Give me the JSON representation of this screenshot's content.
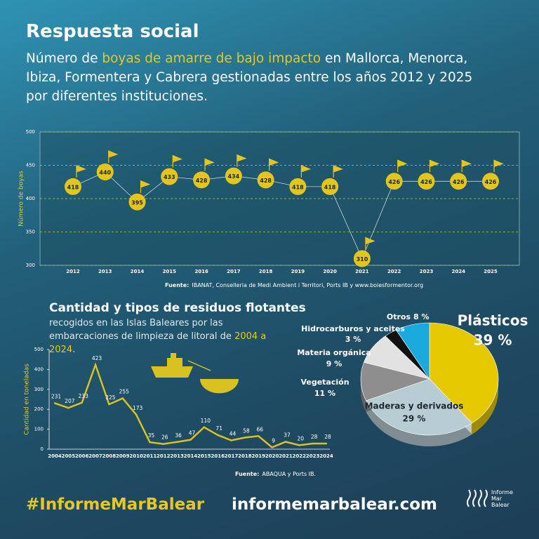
{
  "header": {
    "title": "Respuesta social",
    "subtitle": [
      "Número de ",
      "boyas de amarre de bajo impacto",
      " en Mallorca, Menorca, Ibiza, Formentera y Cabrera gestionadas entre los años 2012 y 2025 por diferentes instituciones."
    ]
  },
  "chart_data": [
    {
      "type": "line",
      "y_label": "Número de boyas",
      "categories": [
        "2012",
        "2013",
        "2014",
        "2015",
        "2016",
        "2017",
        "2018",
        "2019",
        "2020",
        "2021",
        "2022",
        "2023",
        "2024",
        "2025"
      ],
      "values": [
        418,
        440,
        395,
        433,
        428,
        434,
        428,
        418,
        418,
        310,
        426,
        426,
        426,
        426
      ],
      "color": "#e3c51c",
      "ylim": [
        300,
        500
      ],
      "yticks": [
        300,
        350,
        400,
        450,
        500
      ],
      "grid": true,
      "source": {
        "label": "Fuente:",
        "text": "IBANAT, Conselleria de Medi Ambient i Territori, Ports IB y www.boiesformentor.org"
      }
    },
    {
      "type": "line",
      "title": "Cantidad y tipos de residuos flotantes",
      "subtitle": [
        "recogidos en las Islas Baleares por las embarcaciones de limpieza de litoral de ",
        "2004 a 2024",
        "."
      ],
      "y_label": "Cantidad en toneladas",
      "categories": [
        "2004",
        "2005",
        "2006",
        "2007",
        "2008",
        "2009",
        "2010",
        "2011",
        "2012",
        "2013",
        "2014",
        "2015",
        "2016",
        "2017",
        "2018",
        "2019",
        "2020",
        "2021",
        "2022",
        "2023",
        "2024"
      ],
      "values": [
        231,
        207,
        233,
        423,
        225,
        255,
        173,
        35,
        26,
        36,
        47,
        110,
        71,
        44,
        58,
        66,
        9,
        37,
        20,
        28,
        28
      ],
      "color": "#d9c21f",
      "ylim": [
        0,
        500
      ],
      "yticks": [
        0,
        100,
        200,
        300,
        400,
        500
      ],
      "grid": false,
      "source": {
        "label": "Fuente:",
        "text": "ABAQUA y Ports IB."
      }
    },
    {
      "type": "pie",
      "categories": [
        "Plásticos",
        "Maderas y derivados",
        "Vegetación",
        "Materia orgánica",
        "Hidrocarburos y aceites",
        "Otros"
      ],
      "values": [
        39,
        29,
        11,
        9,
        3,
        8
      ],
      "value_labels": [
        "39 %",
        "29 %",
        "11 %",
        "9 %",
        "3 %",
        "8 %"
      ],
      "colors": [
        "#e6c800",
        "#b8ccd4",
        "#8e8e8e",
        "#e2e2e2",
        "#111111",
        "#19a9dc"
      ]
    }
  ],
  "footer": {
    "hashtag": "#InformeMarBalear",
    "website": "informemarbalear.com",
    "logo": [
      "Informe",
      "Mar",
      "Balear"
    ]
  }
}
